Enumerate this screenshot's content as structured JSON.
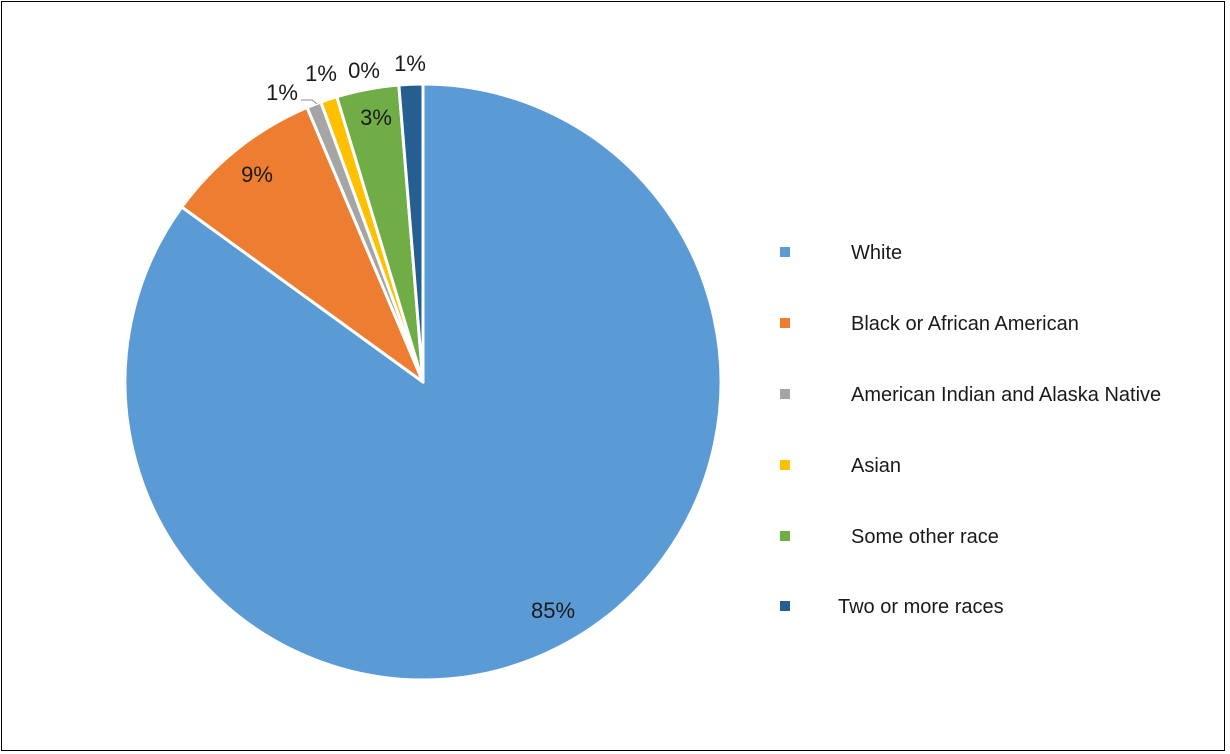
{
  "chart_data": {
    "type": "pie",
    "title": "",
    "start_angle_deg": 0,
    "direction": "clockwise",
    "legend_position": "right",
    "slices": [
      {
        "name": "White",
        "value": 85.5,
        "label": "85%",
        "color": "#5B9BD5"
      },
      {
        "name": "Black or African American",
        "value": 8.7,
        "label": "9%",
        "color": "#ED7D31"
      },
      {
        "name": "American Indian and Alaska Native",
        "value": 0.8,
        "label": "1%",
        "color": "#A5A5A5"
      },
      {
        "name": "Asian",
        "value": 0.9,
        "label": "1%",
        "color": "#FFC000"
      },
      {
        "name": "Some other race",
        "value": 3.4,
        "label": "3%",
        "color": "#70AD47"
      },
      {
        "name": "Two or more races",
        "value": 1.3,
        "label": "1%",
        "color": "#255E91"
      }
    ],
    "extra_labels": [
      "0%"
    ]
  }
}
